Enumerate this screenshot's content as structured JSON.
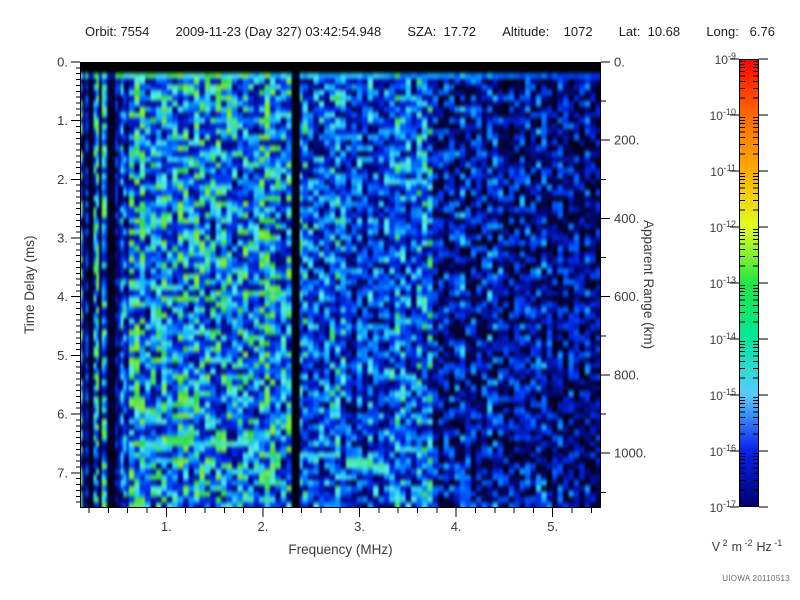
{
  "header": {
    "segments": [
      "Orbit: 7554",
      "2009-11-23 (Day 327) 03:42:54.948",
      "SZA:  17.72",
      "Altitude:    1072",
      "Lat:  10.68",
      "Long:   6.76"
    ]
  },
  "chart_data": {
    "type": "heatmap",
    "xlabel": "Frequency (MHz)",
    "x_range": [
      0.1,
      5.5
    ],
    "x_ticks": [
      {
        "value": 1,
        "label": "1."
      },
      {
        "value": 2,
        "label": "2."
      },
      {
        "value": 3,
        "label": "3."
      },
      {
        "value": 4,
        "label": "4."
      },
      {
        "value": 5,
        "label": "5."
      }
    ],
    "x_minor_step": 0.2,
    "ylabel_left": "Time Delay (ms)",
    "y_left_range": [
      0,
      7.6
    ],
    "y_left_ticks": [
      {
        "value": 0,
        "label": "0."
      },
      {
        "value": 1,
        "label": "1."
      },
      {
        "value": 2,
        "label": "2."
      },
      {
        "value": 3,
        "label": "3."
      },
      {
        "value": 4,
        "label": "4."
      },
      {
        "value": 5,
        "label": "5."
      },
      {
        "value": 6,
        "label": "6."
      },
      {
        "value": 7,
        "label": "7."
      }
    ],
    "y_left_minor_step": 0.1,
    "ylabel_right": "Apparent Range (km)",
    "y_right_range": [
      0,
      1140
    ],
    "y_right_ticks": [
      {
        "value": 0,
        "label": "0."
      },
      {
        "value": 200,
        "label": "200."
      },
      {
        "value": 400,
        "label": "400."
      },
      {
        "value": 600,
        "label": "600."
      },
      {
        "value": 800,
        "label": "800."
      },
      {
        "value": 1000,
        "label": "1000."
      }
    ],
    "y_right_minor_step": 100,
    "colorbar": {
      "scale": "log",
      "tick_labels": [
        {
          "base": "10",
          "exp": "-9"
        },
        {
          "base": "10",
          "exp": "-10"
        },
        {
          "base": "10",
          "exp": "-11"
        },
        {
          "base": "10",
          "exp": "-12"
        },
        {
          "base": "10",
          "exp": "-13"
        },
        {
          "base": "10",
          "exp": "-14"
        },
        {
          "base": "10",
          "exp": "-15"
        },
        {
          "base": "10",
          "exp": "-16"
        },
        {
          "base": "10",
          "exp": "-17"
        }
      ],
      "unit_parts": [
        {
          "base": "V",
          "exp": "2"
        },
        {
          "base": "m",
          "exp": "-2"
        },
        {
          "base": "Hz",
          "exp": "-1"
        }
      ],
      "gradient_stops": [
        "#FB0500",
        "#FF6A00",
        "#FFAC00",
        "#DFFF22",
        "#22E545",
        "#00E89A",
        "#58CBFF",
        "#0823EC",
        "#00006E"
      ]
    },
    "heat_colormap": [
      {
        "v": 0.0,
        "c": "#000000"
      },
      {
        "v": 0.08,
        "c": "#04043C"
      },
      {
        "v": 0.18,
        "c": "#000A82"
      },
      {
        "v": 0.34,
        "c": "#0028E6"
      },
      {
        "v": 0.5,
        "c": "#006EFF"
      },
      {
        "v": 0.64,
        "c": "#1EBEFF"
      },
      {
        "v": 0.76,
        "c": "#50E6E6"
      },
      {
        "v": 0.86,
        "c": "#46E182"
      },
      {
        "v": 0.95,
        "c": "#32D246"
      },
      {
        "v": 1.0,
        "c": "#78E63C"
      }
    ],
    "features": [
      "Broadband blue noise background across 0.1-5.5 MHz",
      "Black band at top (0-0.2 ms) before transmit pulse",
      "Bright cyan horizontal line at ~0.25 ms, strongest below 3 MHz, fading toward higher frequency",
      "Strong narrow vertical bright/dark striping below ~0.55 MHz",
      "Enhanced cyan noise between ~0.55 and ~2.3 MHz",
      "Black interference notch at ~2.35 MHz",
      "Ionospheric echo trace: green patches at ~6.4-6.8 ms between ~0.6 and 1.9 MHz",
      "Second echo segment at ~6.7-7.1 ms between ~2.5 and 3.4 MHz stepping downward",
      "Dark weak-signal region with black dropouts above ~3.9 MHz"
    ]
  },
  "credit": "UIOWA 20110513"
}
